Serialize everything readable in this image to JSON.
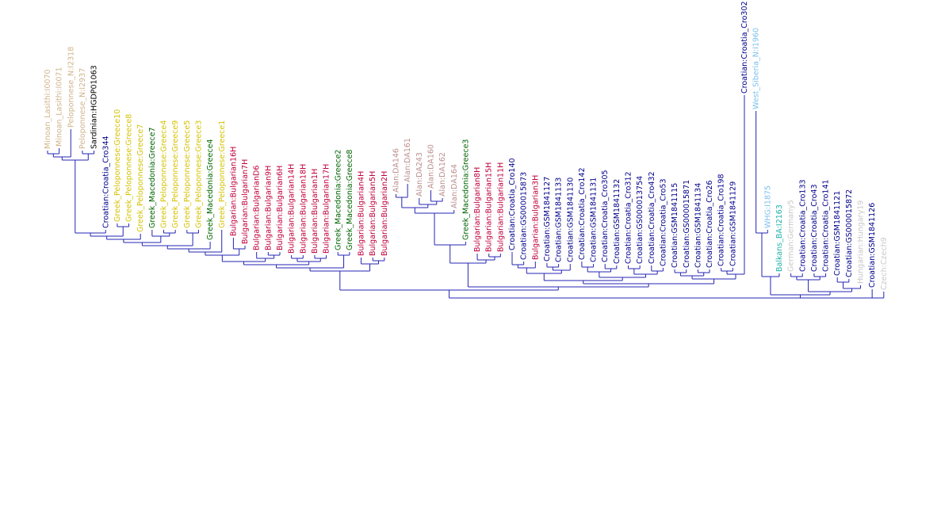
{
  "leaves": [
    {
      "label": "Minoan_Lasithi:I0070",
      "color": "#d2b48c"
    },
    {
      "label": "Minoan_Lasithi:I0071",
      "color": "#d2b48c"
    },
    {
      "label": "Peloponnese_N:I2318",
      "color": "#d2b48c"
    },
    {
      "label": "Peloponnese_N:I2937",
      "color": "#d2b48c"
    },
    {
      "label": "Sardinian:HGDP01063",
      "color": "#000000"
    },
    {
      "label": "Croatian:Croatia_Cro344",
      "color": "#00008b"
    },
    {
      "label": "Greek_Peloponnese:Greece10",
      "color": "#d4c200"
    },
    {
      "label": "Greek_Peloponnese:Greece8",
      "color": "#d4c200"
    },
    {
      "label": "Greek_Peloponnese:Greece7",
      "color": "#d4c200"
    },
    {
      "label": "Greek_Macedonia:Greece7",
      "color": "#006400"
    },
    {
      "label": "Greek_Peloponnese:Greece4",
      "color": "#d4c200"
    },
    {
      "label": "Greek_Peloponnese:Greece9",
      "color": "#d4c200"
    },
    {
      "label": "Greek_Peloponnese:Greece5",
      "color": "#d4c200"
    },
    {
      "label": "Greek_Peloponnese:Greece3",
      "color": "#d4c200"
    },
    {
      "label": "Greek_Macedonia:Greece4",
      "color": "#006400"
    },
    {
      "label": "Greek_Peloponnese:Greece1",
      "color": "#d4c200"
    },
    {
      "label": "Bulgarian:Bulgarian16H",
      "color": "#c0003c"
    },
    {
      "label": "Bulgarian:Bulgarian7H",
      "color": "#c0003c"
    },
    {
      "label": "Bulgarian:BulgarianD6",
      "color": "#c0003c"
    },
    {
      "label": "Bulgarian:Bulgarian9H",
      "color": "#c0003c"
    },
    {
      "label": "Bulgarian:Bulgarian6H",
      "color": "#c0003c"
    },
    {
      "label": "Bulgarian:Bulgarian14H",
      "color": "#c0003c"
    },
    {
      "label": "Bulgarian:Bulgarian18H",
      "color": "#c0003c"
    },
    {
      "label": "Bulgarian:Bulgarian1H",
      "color": "#c0003c"
    },
    {
      "label": "Bulgarian:Bulgarian17H",
      "color": "#c0003c"
    },
    {
      "label": "Greek_Macedonia:Greece2",
      "color": "#006400"
    },
    {
      "label": "Greek_Macedonia:Greece8",
      "color": "#006400"
    },
    {
      "label": "Bulgarian:Bulgarian4H",
      "color": "#c0003c"
    },
    {
      "label": "Bulgarian:Bulgarian5H",
      "color": "#c0003c"
    },
    {
      "label": "Bulgarian:Bulgarian2H",
      "color": "#c0003c"
    },
    {
      "label": "Alan:DA146",
      "color": "#bc8f8f"
    },
    {
      "label": "Alan:DA161",
      "color": "#bc8f8f"
    },
    {
      "label": "Alan:DA243",
      "color": "#bc8f8f"
    },
    {
      "label": "Alan:DA160",
      "color": "#bc8f8f"
    },
    {
      "label": "Alan:DA162",
      "color": "#bc8f8f"
    },
    {
      "label": "Alan:DA164",
      "color": "#bc8f8f"
    },
    {
      "label": "Greek_Macedonia:Greece3",
      "color": "#006400"
    },
    {
      "label": "Bulgarian:Bulgarian8H",
      "color": "#c0003c"
    },
    {
      "label": "Bulgarian:Bulgarian15H",
      "color": "#c0003c"
    },
    {
      "label": "Bulgarian:Bulgarian11H",
      "color": "#c0003c"
    },
    {
      "label": "Croatian:Croatia_Cro140",
      "color": "#00008b"
    },
    {
      "label": "Croatian:GS000015873",
      "color": "#00008b"
    },
    {
      "label": "Bulgarian:Bulgarian3H",
      "color": "#c0003c"
    },
    {
      "label": "Croatian:GSM1841127",
      "color": "#00008b"
    },
    {
      "label": "Croatian:GSM1841133",
      "color": "#00008b"
    },
    {
      "label": "Croatian:GSM1841130",
      "color": "#00008b"
    },
    {
      "label": "Croatian:Croatia_Cro142",
      "color": "#00008b"
    },
    {
      "label": "Croatian:GSM1841131",
      "color": "#00008b"
    },
    {
      "label": "Croatian:Croatia_Cro305",
      "color": "#00008b"
    },
    {
      "label": "Croatian:GSM1841132",
      "color": "#00008b"
    },
    {
      "label": "Croatian:Croatia_Cro312",
      "color": "#00008b"
    },
    {
      "label": "Croatian:GS000013754",
      "color": "#00008b"
    },
    {
      "label": "Croatian:Croatia_Cro432",
      "color": "#00008b"
    },
    {
      "label": "Croatian:Croatia_Cro53",
      "color": "#00008b"
    },
    {
      "label": "Croatian:GSM1841115",
      "color": "#00008b"
    },
    {
      "label": "Croatian:GS000015871",
      "color": "#00008b"
    },
    {
      "label": "Croatian:GSM1841134",
      "color": "#00008b"
    },
    {
      "label": "Croatian:Croatia_Cro26",
      "color": "#00008b"
    },
    {
      "label": "Croatian:Croatia_Cro198",
      "color": "#00008b"
    },
    {
      "label": "Croatian:GSM1841129",
      "color": "#00008b"
    },
    {
      "label": "Croatian:Croatia_Cro302",
      "color": "#00008b"
    },
    {
      "label": "West_Siberia_N:I1960",
      "color": "#7ec0ee"
    },
    {
      "label": "WHG:I1875",
      "color": "#7ec0ee"
    },
    {
      "label": "Balkans_BA:I2163",
      "color": "#20b2aa"
    },
    {
      "label": "German:Germany5",
      "color": "#c8c8c8"
    },
    {
      "label": "Croatian:Croatia_Cro133",
      "color": "#00008b"
    },
    {
      "label": "Croatian:Croatia_Cro43",
      "color": "#00008b"
    },
    {
      "label": "Croatian:Croatia_Cro141",
      "color": "#00008b"
    },
    {
      "label": "Croatian:GSM1841121",
      "color": "#00008b"
    },
    {
      "label": "Croatian:GS000015872",
      "color": "#00008b"
    },
    {
      "label": "Hungarian:Hungary19",
      "color": "#c8c8c8"
    },
    {
      "label": "Croatian:GSM1841126",
      "color": "#00008b"
    },
    {
      "label": "Czech:Czech9",
      "color": "#c8c8c8"
    }
  ]
}
